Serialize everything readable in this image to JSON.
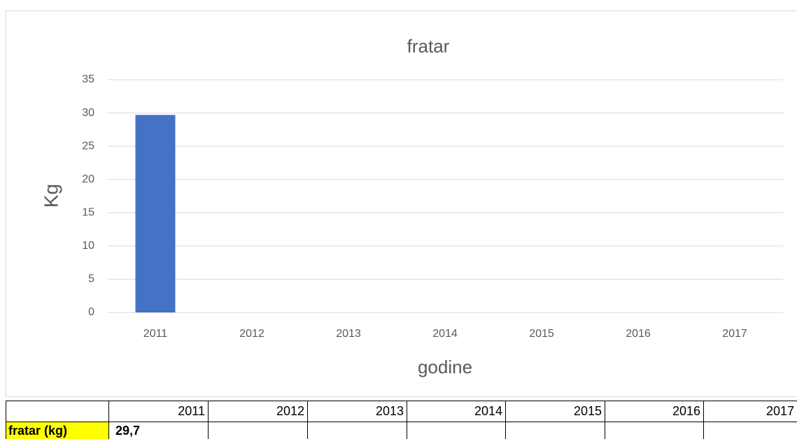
{
  "chart_data": {
    "type": "bar",
    "title": "fratar",
    "x_label": "godine",
    "y_label": "Kg",
    "categories": [
      "2011",
      "2012",
      "2013",
      "2014",
      "2015",
      "2016",
      "2017"
    ],
    "values": [
      29.7,
      null,
      null,
      null,
      null,
      null,
      null
    ],
    "color": "#4472c4",
    "ylim": [
      0,
      35
    ],
    "yticks": [
      0,
      5,
      10,
      15,
      20,
      25,
      30,
      35
    ],
    "grid": true
  },
  "table": {
    "header": [
      "2011",
      "2012",
      "2013",
      "2014",
      "2015",
      "2016",
      "2017"
    ],
    "rows": [
      [
        "fratar (kg)",
        "29,7"
      ]
    ]
  }
}
